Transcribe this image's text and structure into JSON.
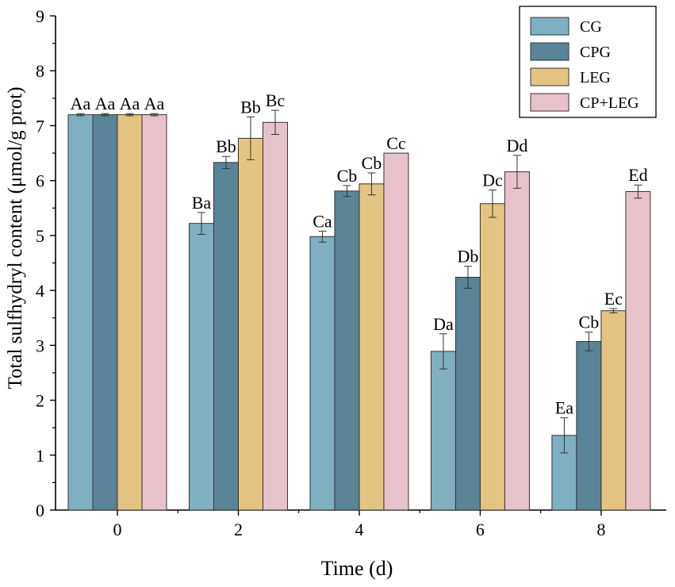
{
  "chart_data": {
    "type": "bar",
    "xlabel": "Time (d)",
    "ylabel": "Total sulfhydryl content (μmol/g prot)",
    "categories": [
      "0",
      "2",
      "4",
      "6",
      "8"
    ],
    "yticks": [
      "0",
      "1",
      "2",
      "3",
      "4",
      "5",
      "6",
      "7",
      "8",
      "9"
    ],
    "ylim": [
      0,
      9
    ],
    "legend_position": "top-right",
    "series": [
      {
        "name": "CG",
        "color": "#7eb0c2",
        "values": [
          7.2,
          5.22,
          4.98,
          2.89,
          1.36
        ],
        "errors": [
          0.02,
          0.2,
          0.1,
          0.32,
          0.32
        ],
        "labels": [
          "Aa",
          "Ba",
          "Ca",
          "Da",
          "Ea"
        ]
      },
      {
        "name": "CPG",
        "color": "#5a8497",
        "values": [
          7.2,
          6.33,
          5.81,
          4.24,
          3.07
        ],
        "errors": [
          0.02,
          0.11,
          0.1,
          0.2,
          0.17
        ],
        "labels": [
          "Aa",
          "Bb",
          "Cb",
          "Db",
          "Cb"
        ]
      },
      {
        "name": "LEG",
        "color": "#e5c483",
        "values": [
          7.2,
          6.77,
          5.94,
          5.58,
          3.63
        ],
        "errors": [
          0.02,
          0.39,
          0.2,
          0.25,
          0.04
        ],
        "labels": [
          "Aa",
          "Bb",
          "Cb",
          "Dc",
          "Ec"
        ]
      },
      {
        "name": "CP+LEG",
        "color": "#e8c2ca",
        "values": [
          7.2,
          7.06,
          6.5,
          6.16,
          5.8
        ],
        "errors": [
          0.02,
          0.22,
          0.0,
          0.3,
          0.12
        ],
        "labels": [
          "Aa",
          "Bc",
          "Cc",
          "Dd",
          "Ed"
        ]
      }
    ]
  }
}
